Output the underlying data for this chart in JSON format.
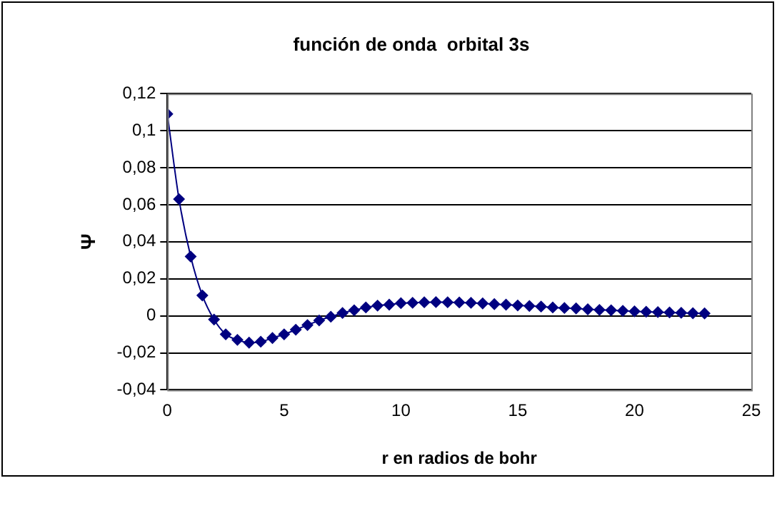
{
  "chart_data": {
    "type": "line",
    "title": "función de onda  orbital 3s",
    "xlabel": "r en radios de bohr",
    "ylabel": "Ψ",
    "x": [
      0,
      0.5,
      1,
      1.5,
      2,
      2.5,
      3,
      3.5,
      4,
      4.5,
      5,
      5.5,
      6,
      6.5,
      7,
      7.5,
      8,
      8.5,
      9,
      9.5,
      10,
      10.5,
      11,
      11.5,
      12,
      12.5,
      13,
      13.5,
      14,
      14.5,
      15,
      15.5,
      16,
      16.5,
      17,
      17.5,
      18,
      18.5,
      19,
      19.5,
      20,
      20.5,
      21,
      21.5,
      22,
      22.5,
      23
    ],
    "series": [
      {
        "color": "#000080",
        "values": [
          0.109,
          0.063,
          0.032,
          0.011,
          -0.002,
          -0.01,
          -0.013,
          -0.0145,
          -0.014,
          -0.012,
          -0.01,
          -0.0075,
          -0.005,
          -0.0025,
          -0.0005,
          0.0015,
          0.003,
          0.0045,
          0.0055,
          0.006,
          0.0068,
          0.007,
          0.0073,
          0.0074,
          0.0073,
          0.0072,
          0.007,
          0.0067,
          0.0063,
          0.006,
          0.0056,
          0.0053,
          0.005,
          0.0045,
          0.0042,
          0.004,
          0.0035,
          0.0032,
          0.003,
          0.0027,
          0.0024,
          0.0022,
          0.002,
          0.0018,
          0.0016,
          0.0014,
          0.0013
        ]
      }
    ],
    "xlim": [
      0,
      25
    ],
    "xticks": [
      0,
      5,
      10,
      15,
      20,
      25
    ],
    "ylim": [
      -0.04,
      0.12
    ],
    "yticks": [
      {
        "value": -0.04,
        "label": "-0,04"
      },
      {
        "value": -0.02,
        "label": "-0,02"
      },
      0,
      {
        "value": 0.02,
        "label": "0,02"
      },
      {
        "value": 0.04,
        "label": "0,04"
      },
      {
        "value": 0.06,
        "label": "0,06"
      },
      {
        "value": 0.08,
        "label": "0,08"
      },
      {
        "value": 0.1,
        "label": "0,1"
      },
      {
        "value": 0.12,
        "label": "0,12"
      }
    ],
    "grid": "y",
    "legend": false,
    "marker": "diamond",
    "line_style": "solid"
  }
}
